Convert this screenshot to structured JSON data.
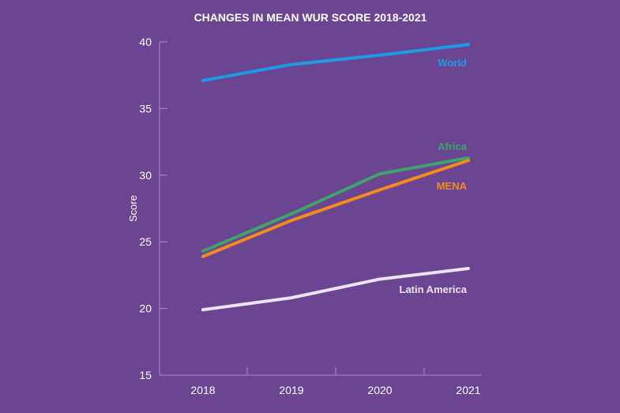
{
  "chart_data": {
    "type": "line",
    "title": "CHANGES IN MEAN WUR SCORE 2018-2021",
    "xlabel": "",
    "ylabel": "Score",
    "categories": [
      "2018",
      "2019",
      "2020",
      "2021"
    ],
    "ylim": [
      15,
      40
    ],
    "yticks": [
      15,
      20,
      25,
      30,
      35,
      40
    ],
    "grid": false,
    "series": [
      {
        "name": "World",
        "color": "#1e9be3",
        "values": [
          37.1,
          38.3,
          39.0,
          39.8
        ]
      },
      {
        "name": "Africa",
        "color": "#3fa46a",
        "values": [
          24.3,
          27.1,
          30.1,
          31.3
        ]
      },
      {
        "name": "MENA",
        "color": "#f28c1e",
        "values": [
          23.9,
          26.6,
          28.9,
          31.1
        ]
      },
      {
        "name": "Latin America",
        "color": "#ece4f2",
        "values": [
          19.9,
          20.8,
          22.2,
          23.0
        ]
      }
    ]
  }
}
